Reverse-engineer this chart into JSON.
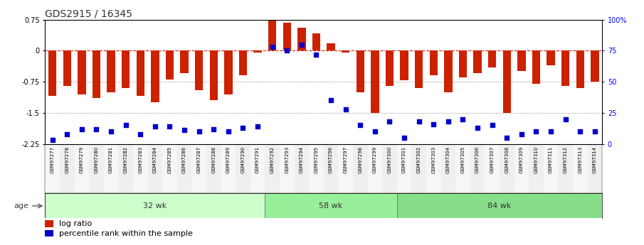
{
  "title": "GDS2915 / 16345",
  "samples": [
    "GSM97277",
    "GSM97278",
    "GSM97279",
    "GSM97280",
    "GSM97281",
    "GSM97282",
    "GSM97283",
    "GSM97284",
    "GSM97285",
    "GSM97286",
    "GSM97287",
    "GSM97288",
    "GSM97289",
    "GSM97290",
    "GSM97291",
    "GSM97292",
    "GSM97293",
    "GSM97294",
    "GSM97295",
    "GSM97296",
    "GSM97297",
    "GSM97298",
    "GSM97299",
    "GSM97300",
    "GSM97301",
    "GSM97302",
    "GSM97303",
    "GSM97304",
    "GSM97305",
    "GSM97306",
    "GSM97307",
    "GSM97308",
    "GSM97309",
    "GSM97310",
    "GSM97311",
    "GSM97312",
    "GSM97313",
    "GSM97314"
  ],
  "log_ratio": [
    -1.1,
    -0.85,
    -1.05,
    -1.15,
    -1.0,
    -0.9,
    -1.1,
    -1.25,
    -0.7,
    -0.55,
    -0.95,
    -1.2,
    -1.05,
    -0.6,
    -0.05,
    0.72,
    0.68,
    0.55,
    0.42,
    0.18,
    -0.05,
    -1.0,
    -1.5,
    -0.85,
    -0.72,
    -0.9,
    -0.6,
    -1.0,
    -0.65,
    -0.55,
    -0.4,
    -1.5,
    -0.5,
    -0.8,
    -0.35,
    -0.85,
    -0.9,
    -0.75
  ],
  "percentile": [
    3,
    8,
    12,
    12,
    10,
    15,
    8,
    14,
    14,
    11,
    10,
    12,
    10,
    13,
    14,
    78,
    75,
    80,
    72,
    35,
    28,
    15,
    10,
    18,
    5,
    18,
    16,
    18,
    20,
    13,
    15,
    5,
    8,
    10,
    10,
    20,
    10,
    10
  ],
  "groups": [
    {
      "label": "32 wk",
      "start": 0,
      "end": 15,
      "color": "#ccffcc"
    },
    {
      "label": "58 wk",
      "start": 15,
      "end": 24,
      "color": "#99ee99"
    },
    {
      "label": "84 wk",
      "start": 24,
      "end": 38,
      "color": "#88dd88"
    }
  ],
  "ylim_left": [
    -2.25,
    0.75
  ],
  "ylim_right": [
    0,
    100
  ],
  "yticks_left": [
    0.75,
    0.0,
    -0.75,
    -1.5,
    -2.25
  ],
  "yticks_right": [
    100,
    75,
    50,
    25,
    0
  ],
  "ytick_labels_right": [
    "100%",
    "75",
    "50",
    "25",
    "0"
  ],
  "bar_color": "#cc2200",
  "dot_color": "#0000cc",
  "zero_line_color": "#cc2200",
  "grid_line_color": "#888888",
  "bg_color": "#ffffff",
  "title_fontsize": 10,
  "tick_fontsize": 7,
  "label_fontsize": 6,
  "age_label": "age",
  "legend_log_ratio": "log ratio",
  "legend_percentile": "percentile rank within the sample"
}
